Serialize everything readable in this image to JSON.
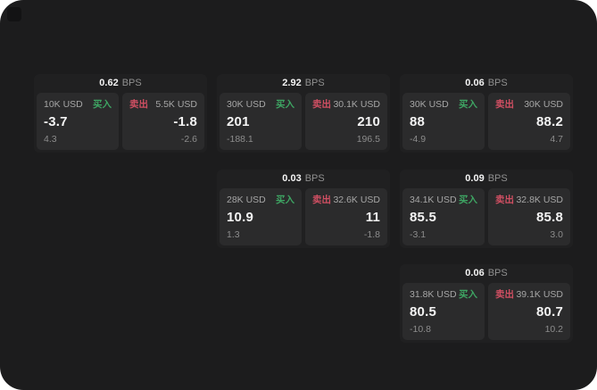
{
  "colors": {
    "window_bg": "#1c1c1d",
    "card_bg": "#202021",
    "panel_bg": "#2b2b2c",
    "buy_green": "#3ea563",
    "sell_red": "#cf4f62",
    "primary_text": "#f4f4f4",
    "muted_text": "#8c8c8c"
  },
  "cards": [
    {
      "bps_value": "0.62",
      "bps_unit": "BPS",
      "buy": {
        "amount": "10K USD",
        "side_label": "买入",
        "value": "-3.7",
        "sub_value": "4.3"
      },
      "sell": {
        "amount": "5.5K USD",
        "side_label": "卖出",
        "value": "-1.8",
        "sub_value": "-2.6"
      }
    },
    {
      "bps_value": "2.92",
      "bps_unit": "BPS",
      "buy": {
        "amount": "30K USD",
        "side_label": "买入",
        "value": "201",
        "sub_value": "-188.1"
      },
      "sell": {
        "amount": "30.1K USD",
        "side_label": "卖出",
        "value": "210",
        "sub_value": "196.5"
      }
    },
    {
      "bps_value": "0.06",
      "bps_unit": "BPS",
      "buy": {
        "amount": "30K USD",
        "side_label": "买入",
        "value": "88",
        "sub_value": "-4.9"
      },
      "sell": {
        "amount": "30K USD",
        "side_label": "卖出",
        "value": "88.2",
        "sub_value": "4.7"
      }
    },
    {
      "bps_value": "0.03",
      "bps_unit": "BPS",
      "buy": {
        "amount": "28K USD",
        "side_label": "买入",
        "value": "10.9",
        "sub_value": "1.3"
      },
      "sell": {
        "amount": "32.6K USD",
        "side_label": "卖出",
        "value": "11",
        "sub_value": "-1.8"
      }
    },
    {
      "bps_value": "0.09",
      "bps_unit": "BPS",
      "buy": {
        "amount": "34.1K USD",
        "side_label": "买入",
        "value": "85.5",
        "sub_value": "-3.1"
      },
      "sell": {
        "amount": "32.8K USD",
        "side_label": "卖出",
        "value": "85.8",
        "sub_value": "3.0"
      }
    },
    {
      "bps_value": "0.06",
      "bps_unit": "BPS",
      "buy": {
        "amount": "31.8K USD",
        "side_label": "买入",
        "value": "80.5",
        "sub_value": "-10.8"
      },
      "sell": {
        "amount": "39.1K USD",
        "side_label": "卖出",
        "value": "80.7",
        "sub_value": "10.2"
      }
    }
  ]
}
